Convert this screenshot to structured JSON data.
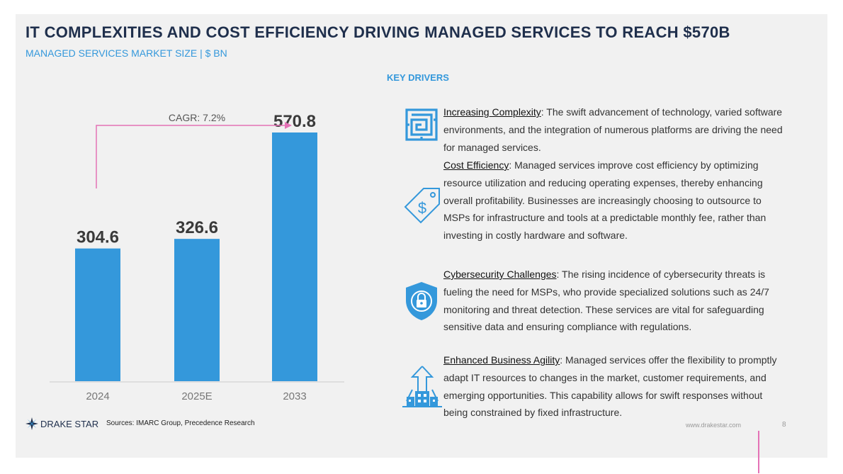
{
  "title": "IT COMPLEXITIES AND COST EFFICIENCY DRIVING MANAGED SERVICES TO REACH $570B",
  "subtitle": "MANAGED SERVICES MARKET SIZE | $ BN",
  "chart_data": {
    "type": "bar",
    "categories": [
      "2024",
      "2025E",
      "2033"
    ],
    "values": [
      304.6,
      326.6,
      570.8
    ],
    "value_labels": [
      "304.6",
      "326.6",
      "570.8"
    ],
    "title": "MANAGED SERVICES MARKET SIZE | $ BN",
    "xlabel": "",
    "ylabel": "$ BN",
    "ylim": [
      0,
      600
    ],
    "annotation": "CAGR: 7.2%",
    "colors": {
      "bar": "#3498db",
      "arrow": "#e472b6"
    }
  },
  "key_drivers": {
    "heading": "KEY DRIVERS",
    "items": [
      {
        "name": "Increasing Complexity",
        "sep": ":",
        "icon": "maze-icon",
        "text": " The swift advancement of technology, varied software environments, and the integration of numerous platforms are driving the need for managed services."
      },
      {
        "name": "Cost Efficiency",
        "sep": ":",
        "icon": "price-tag-icon",
        "text": " Managed services improve cost efficiency by optimizing resource utilization and reducing operating expenses, thereby enhancing overall profitability. Businesses are increasingly choosing to outsource to MSPs for infrastructure and tools at a predictable monthly fee, rather than investing in costly hardware and software."
      },
      {
        "name": "Cybersecurity Challenges",
        "sep": ":",
        "icon": "shield-lock-icon",
        "text": " The rising incidence of cybersecurity threats is fueling the need for MSPs, who provide specialized solutions such as 24/7 monitoring and threat detection. These services are vital for safeguarding sensitive data and ensuring compliance with regulations."
      },
      {
        "name": "Enhanced Business Agility",
        "sep": ":",
        "icon": "growth-city-icon",
        "text": " Managed services offer the flexibility to promptly adapt IT resources to changes in the market, customer requirements, and emerging opportunities. This capability allows for swift responses without being constrained by fixed infrastructure."
      }
    ]
  },
  "footer": {
    "brand": "DRAKE STAR",
    "sources": "Sources: IMARC Group, Precedence Research",
    "url": "www.drakestar.com",
    "page": "8"
  },
  "colors": {
    "accent": "#3498db",
    "title": "#1f2f4c",
    "pink": "#e472b6"
  }
}
